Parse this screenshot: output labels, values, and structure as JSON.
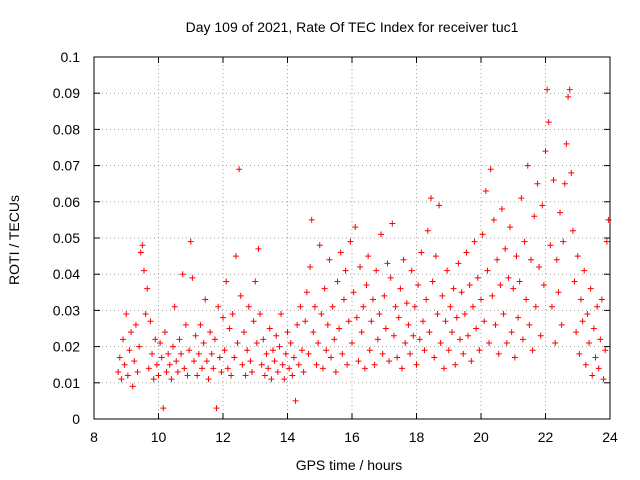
{
  "chart_data": {
    "type": "scatter",
    "title": "Day 109 of 2021, Rate Of TEC Index for receiver tuc1",
    "xlabel": "GPS time / hours",
    "ylabel": "ROTI / TECUs",
    "xlim": [
      8,
      24
    ],
    "ylim": [
      0,
      0.1
    ],
    "x_ticks": [
      8,
      10,
      12,
      14,
      16,
      18,
      20,
      22,
      24
    ],
    "y_ticks": [
      0,
      0.01,
      0.02,
      0.03,
      0.04,
      0.05,
      0.06,
      0.07,
      0.08,
      0.09,
      0.1
    ],
    "x_tick_labels": [
      "8",
      "10",
      "12",
      "14",
      "16",
      "18",
      "20",
      "22",
      "24"
    ],
    "y_tick_labels": [
      "0",
      "0.01",
      "0.02",
      "0.03",
      "0.04",
      "0.05",
      "0.06",
      "0.07",
      "0.08",
      "0.09",
      "0.1"
    ],
    "grid": true,
    "marker": "+",
    "color": "#ff0000",
    "points": [
      [
        8.75,
        0.013
      ],
      [
        8.8,
        0.017
      ],
      [
        8.85,
        0.011
      ],
      [
        8.9,
        0.022
      ],
      [
        8.95,
        0.015
      ],
      [
        9.0,
        0.029
      ],
      [
        9.05,
        0.012
      ],
      [
        9.1,
        0.019
      ],
      [
        9.15,
        0.024
      ],
      [
        9.2,
        0.009
      ],
      [
        9.25,
        0.016
      ],
      [
        9.3,
        0.026
      ],
      [
        9.35,
        0.013
      ],
      [
        9.4,
        0.02
      ],
      [
        9.45,
        0.046
      ],
      [
        9.5,
        0.048
      ],
      [
        9.55,
        0.041
      ],
      [
        9.6,
        0.029
      ],
      [
        9.65,
        0.036
      ],
      [
        9.7,
        0.014
      ],
      [
        9.75,
        0.027
      ],
      [
        9.8,
        0.018
      ],
      [
        9.85,
        0.011
      ],
      [
        9.9,
        0.022
      ],
      [
        9.95,
        0.015
      ],
      [
        10.0,
        0.012
      ],
      [
        10.05,
        0.021
      ],
      [
        10.1,
        0.017
      ],
      [
        10.15,
        0.003
      ],
      [
        10.2,
        0.024
      ],
      [
        10.25,
        0.013
      ],
      [
        10.3,
        0.018
      ],
      [
        10.35,
        0.015
      ],
      [
        10.4,
        0.011
      ],
      [
        10.45,
        0.02
      ],
      [
        10.5,
        0.031
      ],
      [
        10.55,
        0.016
      ],
      [
        10.6,
        0.013
      ],
      [
        10.65,
        0.022
      ],
      [
        10.7,
        0.018
      ],
      [
        10.75,
        0.04
      ],
      [
        10.8,
        0.014
      ],
      [
        10.85,
        0.026
      ],
      [
        10.9,
        0.012
      ],
      [
        10.95,
        0.019
      ],
      [
        11.0,
        0.049
      ],
      [
        11.05,
        0.039
      ],
      [
        11.1,
        0.016
      ],
      [
        11.15,
        0.023
      ],
      [
        11.2,
        0.012
      ],
      [
        11.25,
        0.018
      ],
      [
        11.3,
        0.026
      ],
      [
        11.35,
        0.014
      ],
      [
        11.4,
        0.021
      ],
      [
        11.45,
        0.033
      ],
      [
        11.5,
        0.016
      ],
      [
        11.55,
        0.011
      ],
      [
        11.6,
        0.024
      ],
      [
        11.65,
        0.018
      ],
      [
        11.7,
        0.014
      ],
      [
        11.75,
        0.022
      ],
      [
        11.8,
        0.003
      ],
      [
        11.85,
        0.031
      ],
      [
        11.9,
        0.017
      ],
      [
        11.95,
        0.013
      ],
      [
        12.0,
        0.028
      ],
      [
        12.05,
        0.019
      ],
      [
        12.1,
        0.038
      ],
      [
        12.15,
        0.014
      ],
      [
        12.2,
        0.025
      ],
      [
        12.25,
        0.012
      ],
      [
        12.3,
        0.029
      ],
      [
        12.35,
        0.017
      ],
      [
        12.4,
        0.045
      ],
      [
        12.45,
        0.021
      ],
      [
        12.5,
        0.069
      ],
      [
        12.55,
        0.034
      ],
      [
        12.6,
        0.015
      ],
      [
        12.65,
        0.024
      ],
      [
        12.7,
        0.012
      ],
      [
        12.75,
        0.019
      ],
      [
        12.8,
        0.031
      ],
      [
        12.85,
        0.016
      ],
      [
        12.9,
        0.013
      ],
      [
        12.95,
        0.027
      ],
      [
        13.0,
        0.038
      ],
      [
        13.05,
        0.021
      ],
      [
        13.1,
        0.047
      ],
      [
        13.15,
        0.029
      ],
      [
        13.2,
        0.015
      ],
      [
        13.25,
        0.022
      ],
      [
        13.3,
        0.012
      ],
      [
        13.35,
        0.018
      ],
      [
        13.4,
        0.014
      ],
      [
        13.45,
        0.025
      ],
      [
        13.5,
        0.011
      ],
      [
        13.55,
        0.019
      ],
      [
        13.6,
        0.016
      ],
      [
        13.65,
        0.023
      ],
      [
        13.7,
        0.013
      ],
      [
        13.75,
        0.02
      ],
      [
        13.8,
        0.029
      ],
      [
        13.85,
        0.015
      ],
      [
        13.9,
        0.011
      ],
      [
        13.95,
        0.018
      ],
      [
        14.0,
        0.024
      ],
      [
        14.05,
        0.014
      ],
      [
        14.1,
        0.021
      ],
      [
        14.15,
        0.012
      ],
      [
        14.2,
        0.017
      ],
      [
        14.25,
        0.005
      ],
      [
        14.3,
        0.026
      ],
      [
        14.35,
        0.015
      ],
      [
        14.4,
        0.031
      ],
      [
        14.45,
        0.019
      ],
      [
        14.5,
        0.013
      ],
      [
        14.55,
        0.027
      ],
      [
        14.6,
        0.035
      ],
      [
        14.65,
        0.018
      ],
      [
        14.7,
        0.042
      ],
      [
        14.75,
        0.055
      ],
      [
        14.8,
        0.024
      ],
      [
        14.85,
        0.031
      ],
      [
        14.9,
        0.015
      ],
      [
        14.95,
        0.021
      ],
      [
        15.0,
        0.048
      ],
      [
        15.05,
        0.029
      ],
      [
        15.1,
        0.014
      ],
      [
        15.15,
        0.036
      ],
      [
        15.2,
        0.019
      ],
      [
        15.25,
        0.026
      ],
      [
        15.3,
        0.044
      ],
      [
        15.35,
        0.017
      ],
      [
        15.4,
        0.031
      ],
      [
        15.45,
        0.022
      ],
      [
        15.5,
        0.013
      ],
      [
        15.55,
        0.038
      ],
      [
        15.6,
        0.025
      ],
      [
        15.65,
        0.046
      ],
      [
        15.7,
        0.018
      ],
      [
        15.75,
        0.033
      ],
      [
        15.8,
        0.041
      ],
      [
        15.85,
        0.015
      ],
      [
        15.9,
        0.027
      ],
      [
        15.95,
        0.049
      ],
      [
        16.0,
        0.021
      ],
      [
        16.05,
        0.035
      ],
      [
        16.1,
        0.053
      ],
      [
        16.15,
        0.028
      ],
      [
        16.2,
        0.016
      ],
      [
        16.25,
        0.042
      ],
      [
        16.3,
        0.024
      ],
      [
        16.35,
        0.031
      ],
      [
        16.4,
        0.014
      ],
      [
        16.45,
        0.037
      ],
      [
        16.5,
        0.045
      ],
      [
        16.55,
        0.019
      ],
      [
        16.6,
        0.027
      ],
      [
        16.65,
        0.033
      ],
      [
        16.7,
        0.015
      ],
      [
        16.75,
        0.041
      ],
      [
        16.8,
        0.022
      ],
      [
        16.85,
        0.029
      ],
      [
        16.9,
        0.051
      ],
      [
        16.95,
        0.018
      ],
      [
        17.0,
        0.034
      ],
      [
        17.05,
        0.025
      ],
      [
        17.1,
        0.043
      ],
      [
        17.15,
        0.016
      ],
      [
        17.2,
        0.039
      ],
      [
        17.25,
        0.054
      ],
      [
        17.3,
        0.023
      ],
      [
        17.35,
        0.031
      ],
      [
        17.4,
        0.017
      ],
      [
        17.45,
        0.028
      ],
      [
        17.5,
        0.036
      ],
      [
        17.55,
        0.014
      ],
      [
        17.6,
        0.044
      ],
      [
        17.65,
        0.021
      ],
      [
        17.7,
        0.032
      ],
      [
        17.75,
        0.026
      ],
      [
        17.8,
        0.018
      ],
      [
        17.85,
        0.041
      ],
      [
        17.9,
        0.023
      ],
      [
        17.95,
        0.031
      ],
      [
        18.0,
        0.015
      ],
      [
        18.05,
        0.037
      ],
      [
        18.1,
        0.022
      ],
      [
        18.15,
        0.046
      ],
      [
        18.2,
        0.027
      ],
      [
        18.25,
        0.019
      ],
      [
        18.3,
        0.033
      ],
      [
        18.35,
        0.052
      ],
      [
        18.4,
        0.024
      ],
      [
        18.45,
        0.061
      ],
      [
        18.5,
        0.038
      ],
      [
        18.55,
        0.017
      ],
      [
        18.6,
        0.045
      ],
      [
        18.65,
        0.029
      ],
      [
        18.7,
        0.059
      ],
      [
        18.75,
        0.021
      ],
      [
        18.8,
        0.034
      ],
      [
        18.85,
        0.014
      ],
      [
        18.9,
        0.027
      ],
      [
        18.95,
        0.041
      ],
      [
        19.0,
        0.019
      ],
      [
        19.05,
        0.031
      ],
      [
        19.1,
        0.024
      ],
      [
        19.15,
        0.036
      ],
      [
        19.2,
        0.015
      ],
      [
        19.25,
        0.028
      ],
      [
        19.3,
        0.043
      ],
      [
        19.35,
        0.022
      ],
      [
        19.4,
        0.035
      ],
      [
        19.45,
        0.018
      ],
      [
        19.5,
        0.029
      ],
      [
        19.55,
        0.046
      ],
      [
        19.6,
        0.023
      ],
      [
        19.65,
        0.037
      ],
      [
        19.7,
        0.016
      ],
      [
        19.75,
        0.031
      ],
      [
        19.8,
        0.049
      ],
      [
        19.85,
        0.025
      ],
      [
        19.9,
        0.039
      ],
      [
        19.95,
        0.019
      ],
      [
        20.0,
        0.033
      ],
      [
        20.05,
        0.051
      ],
      [
        20.1,
        0.027
      ],
      [
        20.15,
        0.063
      ],
      [
        20.2,
        0.041
      ],
      [
        20.25,
        0.021
      ],
      [
        20.3,
        0.069
      ],
      [
        20.35,
        0.034
      ],
      [
        20.4,
        0.055
      ],
      [
        20.45,
        0.026
      ],
      [
        20.5,
        0.044
      ],
      [
        20.55,
        0.018
      ],
      [
        20.6,
        0.037
      ],
      [
        20.65,
        0.058
      ],
      [
        20.7,
        0.029
      ],
      [
        20.75,
        0.047
      ],
      [
        20.8,
        0.021
      ],
      [
        20.85,
        0.039
      ],
      [
        20.9,
        0.053
      ],
      [
        20.95,
        0.024
      ],
      [
        21.0,
        0.036
      ],
      [
        21.05,
        0.017
      ],
      [
        21.1,
        0.045
      ],
      [
        21.15,
        0.028
      ],
      [
        21.2,
        0.038
      ],
      [
        21.25,
        0.061
      ],
      [
        21.3,
        0.022
      ],
      [
        21.35,
        0.049
      ],
      [
        21.4,
        0.033
      ],
      [
        21.45,
        0.07
      ],
      [
        21.5,
        0.026
      ],
      [
        21.55,
        0.044
      ],
      [
        21.6,
        0.019
      ],
      [
        21.65,
        0.056
      ],
      [
        21.7,
        0.031
      ],
      [
        21.75,
        0.065
      ],
      [
        21.8,
        0.042
      ],
      [
        21.85,
        0.023
      ],
      [
        21.9,
        0.059
      ],
      [
        21.95,
        0.037
      ],
      [
        22.0,
        0.074
      ],
      [
        22.05,
        0.091
      ],
      [
        22.1,
        0.082
      ],
      [
        22.15,
        0.048
      ],
      [
        22.2,
        0.031
      ],
      [
        22.25,
        0.066
      ],
      [
        22.3,
        0.021
      ],
      [
        22.35,
        0.044
      ],
      [
        22.4,
        0.035
      ],
      [
        22.45,
        0.057
      ],
      [
        22.5,
        0.026
      ],
      [
        22.55,
        0.049
      ],
      [
        22.6,
        0.065
      ],
      [
        22.65,
        0.076
      ],
      [
        22.7,
        0.089
      ],
      [
        22.75,
        0.091
      ],
      [
        22.8,
        0.068
      ],
      [
        22.85,
        0.052
      ],
      [
        22.9,
        0.038
      ],
      [
        22.95,
        0.024
      ],
      [
        23.0,
        0.045
      ],
      [
        23.05,
        0.018
      ],
      [
        23.1,
        0.033
      ],
      [
        23.15,
        0.027
      ],
      [
        23.2,
        0.041
      ],
      [
        23.25,
        0.015
      ],
      [
        23.3,
        0.029
      ],
      [
        23.35,
        0.021
      ],
      [
        23.4,
        0.036
      ],
      [
        23.45,
        0.012
      ],
      [
        23.5,
        0.025
      ],
      [
        23.55,
        0.017
      ],
      [
        23.6,
        0.031
      ],
      [
        23.65,
        0.014
      ],
      [
        23.7,
        0.022
      ],
      [
        23.75,
        0.033
      ],
      [
        23.8,
        0.011
      ],
      [
        23.85,
        0.019
      ],
      [
        23.9,
        0.049
      ],
      [
        23.95,
        0.055
      ]
    ]
  }
}
